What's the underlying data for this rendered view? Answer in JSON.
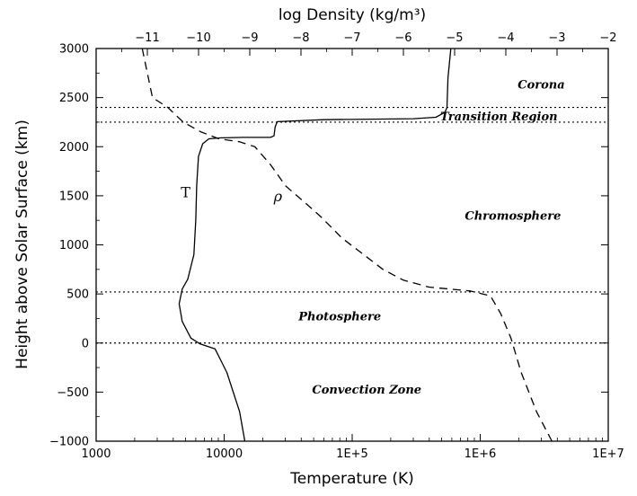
{
  "chart_data": {
    "type": "line",
    "xlabel": "Temperature (K)",
    "x2label": "log Density (kg/m³)",
    "ylabel": "Height above Solar Surface (km)",
    "xscale": "log",
    "xlim": [
      1000,
      10000000
    ],
    "x2lim": [
      -12,
      -2
    ],
    "ylim": [
      -1000,
      3000
    ],
    "xticks": [
      {
        "value": 1000,
        "label": "1000"
      },
      {
        "value": 10000,
        "label": "10000"
      },
      {
        "value": 100000,
        "label": "1E+5"
      },
      {
        "value": 1000000,
        "label": "1E+6"
      },
      {
        "value": 10000000,
        "label": "1E+7"
      }
    ],
    "x2ticks": [
      {
        "value": -11,
        "label": "−11"
      },
      {
        "value": -10,
        "label": "−10"
      },
      {
        "value": -9,
        "label": "−9"
      },
      {
        "value": -8,
        "label": "−8"
      },
      {
        "value": -7,
        "label": "−7"
      },
      {
        "value": -6,
        "label": "−6"
      },
      {
        "value": -5,
        "label": "−5"
      },
      {
        "value": -4,
        "label": "−4"
      },
      {
        "value": -3,
        "label": "−3"
      },
      {
        "value": -2,
        "label": "−2"
      }
    ],
    "yticks": [
      {
        "value": -1000,
        "label": "−1000"
      },
      {
        "value": -500,
        "label": "−500"
      },
      {
        "value": 0,
        "label": "0"
      },
      {
        "value": 500,
        "label": "500"
      },
      {
        "value": 1000,
        "label": "1000"
      },
      {
        "value": 1500,
        "label": "1500"
      },
      {
        "value": 2000,
        "label": "2000"
      },
      {
        "value": 2500,
        "label": "2500"
      },
      {
        "value": 3000,
        "label": "3000"
      }
    ],
    "boundaries": [
      2400,
      2250,
      520,
      0
    ],
    "regions": [
      {
        "label": "Corona",
        "x": 3000000,
        "y": 2640
      },
      {
        "label": "Transition Region",
        "x": 1400000,
        "y": 2315
      },
      {
        "label": "Chromosphere",
        "x": 1800000,
        "y": 1300
      },
      {
        "label": "Photosphere",
        "x": 80000,
        "y": 275
      },
      {
        "label": "Convection Zone",
        "x": 130000,
        "y": -470
      }
    ],
    "series": [
      {
        "name": "T",
        "axis": "bottom",
        "dash": "solid",
        "label_at": [
          5000,
          1540
        ],
        "points": [
          [
            14500,
            -1000
          ],
          [
            13200,
            -700
          ],
          [
            10500,
            -300
          ],
          [
            8500,
            -60
          ],
          [
            6500,
            -10
          ],
          [
            5500,
            50
          ],
          [
            4700,
            220
          ],
          [
            4450,
            400
          ],
          [
            4700,
            550
          ],
          [
            5200,
            650
          ],
          [
            5800,
            900
          ],
          [
            6000,
            1250
          ],
          [
            6100,
            1600
          ],
          [
            6300,
            1900
          ],
          [
            6800,
            2030
          ],
          [
            7600,
            2080
          ],
          [
            9500,
            2090
          ],
          [
            14000,
            2095
          ],
          [
            23000,
            2095
          ],
          [
            24500,
            2110
          ],
          [
            25000,
            2200
          ],
          [
            26000,
            2255
          ],
          [
            60000,
            2275
          ],
          [
            300000,
            2285
          ],
          [
            450000,
            2300
          ],
          [
            530000,
            2350
          ],
          [
            550000,
            2400
          ],
          [
            560000,
            2700
          ],
          [
            590000,
            3000
          ]
        ]
      },
      {
        "name": "ρ",
        "axis": "top",
        "dash": "dashed",
        "label_at": [
          -8.45,
          1500
        ],
        "points": [
          [
            -11.1,
            3000
          ],
          [
            -10.9,
            2500
          ],
          [
            -10.6,
            2400
          ],
          [
            -10.3,
            2250
          ],
          [
            -9.95,
            2150
          ],
          [
            -9.6,
            2080
          ],
          [
            -9.2,
            2050
          ],
          [
            -8.9,
            2000
          ],
          [
            -8.6,
            1820
          ],
          [
            -8.3,
            1600
          ],
          [
            -7.9,
            1420
          ],
          [
            -7.6,
            1280
          ],
          [
            -7.2,
            1070
          ],
          [
            -6.9,
            950
          ],
          [
            -6.4,
            750
          ],
          [
            -6.0,
            640
          ],
          [
            -5.5,
            570
          ],
          [
            -4.7,
            530
          ],
          [
            -4.3,
            480
          ],
          [
            -4.1,
            300
          ],
          [
            -3.9,
            50
          ],
          [
            -3.7,
            -300
          ],
          [
            -3.4,
            -700
          ],
          [
            -3.1,
            -1000
          ]
        ]
      }
    ]
  }
}
